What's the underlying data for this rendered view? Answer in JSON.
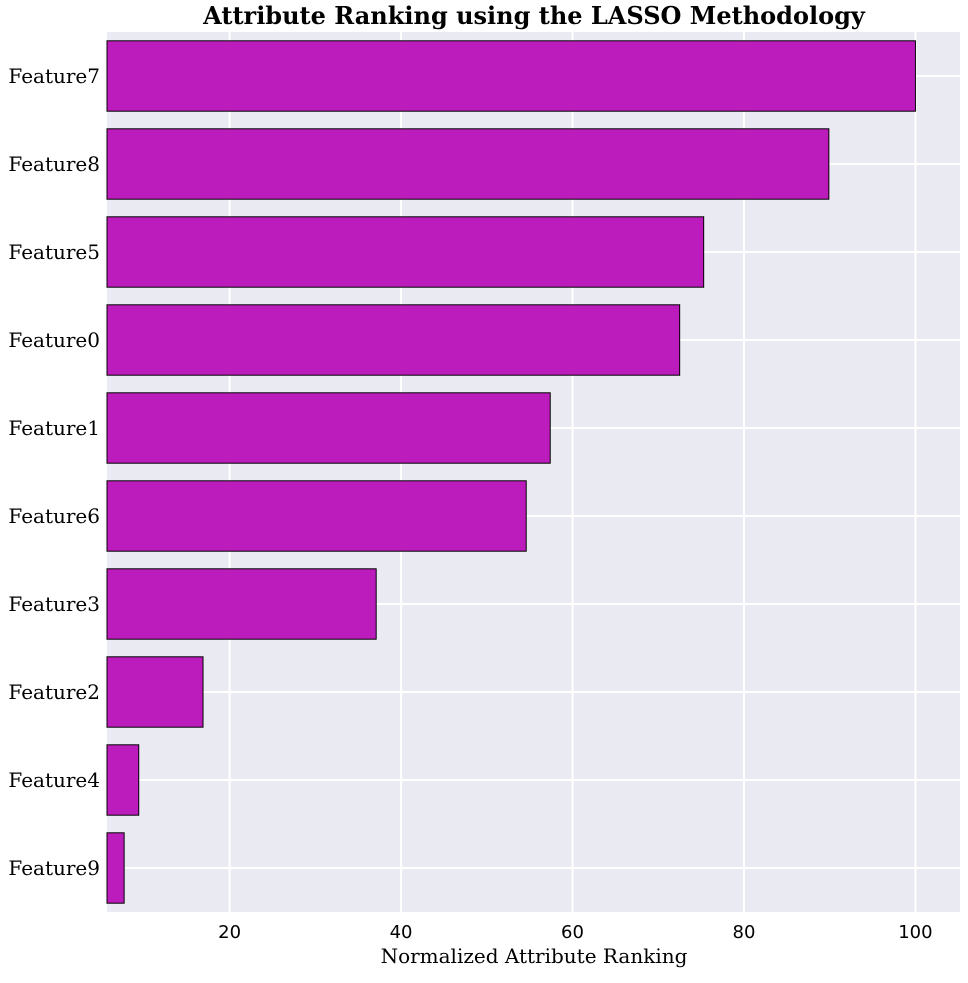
{
  "chart_data": {
    "type": "bar",
    "orientation": "horizontal",
    "title": "Attribute Ranking using the LASSO Methodology",
    "xlabel": "Normalized Attribute Ranking",
    "ylabel": "",
    "categories": [
      "Feature7",
      "Feature8",
      "Feature5",
      "Feature0",
      "Feature1",
      "Feature6",
      "Feature3",
      "Feature2",
      "Feature4",
      "Feature9"
    ],
    "values": [
      100,
      89.9,
      75.3,
      72.5,
      57.4,
      54.6,
      37.1,
      16.9,
      9.4,
      7.7
    ],
    "xlim": [
      5.7,
      105.2
    ],
    "xticks": [
      20,
      40,
      60,
      80,
      100
    ],
    "grid": true,
    "legend": "none",
    "colors": {
      "bar_fill": "#bd1cbd",
      "bar_edge": "#000000",
      "plot_background": "#eaeaf2",
      "grid": "#ffffff"
    }
  }
}
